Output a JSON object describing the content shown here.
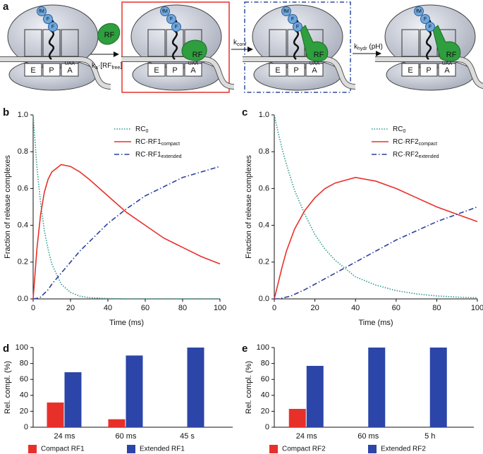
{
  "panel_a": {
    "label": "a",
    "ribosomes": [
      {
        "sites": [
          "E",
          "P",
          "A"
        ],
        "codon": "UAA",
        "peptide": [
          "fM",
          "F",
          "F"
        ]
      },
      {
        "sites": [
          "E",
          "P",
          "A"
        ],
        "codon": "UAA",
        "peptide": [
          "fM",
          "F",
          "F"
        ],
        "factor": "RF"
      },
      {
        "sites": [
          "E",
          "P",
          "A"
        ],
        "codon": "UAA",
        "peptide": [
          "fM",
          "F",
          "F"
        ],
        "factor": "RF"
      },
      {
        "sites": [
          "E",
          "P",
          "A"
        ],
        "codon": "UAA",
        "peptide": [
          "fM",
          "F",
          "F"
        ],
        "factor": "RF"
      }
    ],
    "free_factor": "RF",
    "rates": [
      [
        {
          "t": "k"
        },
        {
          "t": "a",
          "sub": true
        },
        {
          "t": "·[RF"
        },
        {
          "t": "free",
          "sub": true
        },
        {
          "t": "]"
        }
      ],
      [
        {
          "t": "k"
        },
        {
          "t": "conf",
          "sub": true
        }
      ],
      [
        {
          "t": "k"
        },
        {
          "t": "hydr",
          "sub": true
        },
        {
          "t": " (pH)"
        }
      ]
    ]
  },
  "chart_data": [
    {
      "type": "line",
      "panel_label": "b",
      "x": [
        0,
        2,
        4,
        6,
        8,
        10,
        15,
        20,
        25,
        30,
        40,
        50,
        60,
        70,
        80,
        90,
        100
      ],
      "series": [
        {
          "name": "RC",
          "name_sub": "0",
          "color": "#2e9a8c",
          "dash": "dotted",
          "values": [
            1.0,
            0.72,
            0.52,
            0.37,
            0.27,
            0.19,
            0.08,
            0.035,
            0.015,
            0.007,
            0.002,
            0,
            0,
            0,
            0,
            0,
            0
          ]
        },
        {
          "name": "RC·RF1",
          "name_sub": "compact",
          "color": "#e8302a",
          "dash": "solid",
          "values": [
            0,
            0.27,
            0.46,
            0.58,
            0.65,
            0.69,
            0.73,
            0.72,
            0.69,
            0.65,
            0.56,
            0.47,
            0.4,
            0.33,
            0.28,
            0.23,
            0.19
          ]
        },
        {
          "name": "RC·RF1",
          "name_sub": "extended",
          "color": "#2b3f9e",
          "dash": "dashdot",
          "values": [
            0,
            0.003,
            0.01,
            0.03,
            0.05,
            0.08,
            0.14,
            0.2,
            0.26,
            0.31,
            0.41,
            0.49,
            0.56,
            0.61,
            0.66,
            0.69,
            0.72
          ]
        }
      ],
      "xlabel": "Time (ms)",
      "ylabel": "Fraction of release complexes",
      "xlim": [
        0,
        100
      ],
      "xticks": [
        0,
        20,
        40,
        60,
        80,
        100
      ],
      "ylim": [
        0,
        1
      ],
      "yticks": [
        {
          "value": 0,
          "label": "0.0"
        },
        0.2,
        0.4,
        0.6,
        0.8,
        {
          "value": 1,
          "label": "1.0"
        }
      ],
      "legend": "upper right"
    },
    {
      "type": "line",
      "panel_label": "c",
      "x": [
        0,
        2,
        4,
        6,
        8,
        10,
        15,
        20,
        25,
        30,
        40,
        50,
        60,
        70,
        80,
        90,
        100
      ],
      "series": [
        {
          "name": "RC",
          "name_sub": "0",
          "color": "#2e9a8c",
          "dash": "dotted",
          "values": [
            1.0,
            0.9,
            0.81,
            0.73,
            0.66,
            0.59,
            0.46,
            0.35,
            0.27,
            0.21,
            0.12,
            0.075,
            0.045,
            0.027,
            0.016,
            0.01,
            0.006
          ]
        },
        {
          "name": "RC·RF2",
          "name_sub": "compact",
          "color": "#e8302a",
          "dash": "solid",
          "values": [
            0,
            0.09,
            0.18,
            0.26,
            0.32,
            0.38,
            0.48,
            0.55,
            0.6,
            0.63,
            0.66,
            0.64,
            0.6,
            0.55,
            0.5,
            0.46,
            0.42
          ]
        },
        {
          "name": "RC·RF2",
          "name_sub": "extended",
          "color": "#2b3f9e",
          "dash": "dashdot",
          "values": [
            0,
            0.001,
            0.005,
            0.01,
            0.015,
            0.025,
            0.05,
            0.08,
            0.11,
            0.14,
            0.2,
            0.26,
            0.32,
            0.37,
            0.42,
            0.46,
            0.5
          ]
        }
      ],
      "xlabel": "Time (ms)",
      "ylabel": "Fraction of release complexes",
      "xlim": [
        0,
        100
      ],
      "xticks": [
        0,
        20,
        40,
        60,
        80,
        100
      ],
      "ylim": [
        0,
        1
      ],
      "yticks": [
        {
          "value": 0,
          "label": "0.0"
        },
        0.2,
        0.4,
        0.6,
        0.8,
        {
          "value": 1,
          "label": "1.0"
        }
      ],
      "legend": "upper right"
    },
    {
      "type": "bar",
      "panel_label": "d",
      "categories": [
        "24 ms",
        "60 ms",
        "45 s"
      ],
      "series": [
        {
          "name": "Compact RF1",
          "color": "#e8302a",
          "values": [
            31,
            10,
            0
          ]
        },
        {
          "name": "Extended RF1",
          "color": "#2b45a8",
          "values": [
            69,
            90,
            100
          ]
        }
      ],
      "ylabel": "Rel. compl. (%)",
      "ylim": [
        0,
        100
      ],
      "yticks": [
        0,
        20,
        40,
        60,
        80,
        100
      ],
      "legend": "bottom"
    },
    {
      "type": "bar",
      "panel_label": "e",
      "categories": [
        "24 ms",
        "60 ms",
        "5 h"
      ],
      "series": [
        {
          "name": "Compact RF2",
          "color": "#e8302a",
          "values": [
            23,
            0,
            0
          ]
        },
        {
          "name": "Extended RF2",
          "color": "#2b45a8",
          "values": [
            77,
            100,
            100
          ]
        }
      ],
      "ylabel": "Rel. compl. (%)",
      "ylim": [
        0,
        100
      ],
      "yticks": [
        0,
        20,
        40,
        60,
        80,
        100
      ],
      "legend": "bottom"
    }
  ]
}
